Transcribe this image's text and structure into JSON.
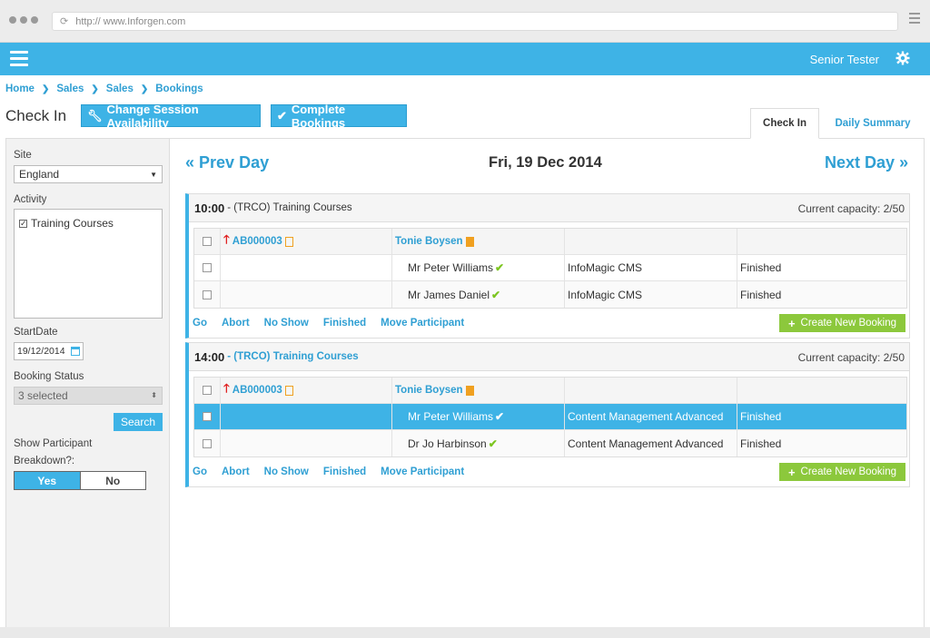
{
  "browser": {
    "url": "http:// www.Inforgen.com"
  },
  "header": {
    "user": "Senior Tester"
  },
  "breadcrumb": [
    "Home",
    "Sales",
    "Sales",
    "Bookings"
  ],
  "page": {
    "title": "Check In",
    "buttons": {
      "change_session": "Change Session Availability",
      "complete_bookings": "Complete Bookings"
    },
    "tabs": [
      {
        "label": "Check In",
        "active": true
      },
      {
        "label": "Daily Summary",
        "active": false
      }
    ]
  },
  "sidebar": {
    "site_label": "Site",
    "site_value": "England",
    "activity_label": "Activity",
    "activity_items": [
      {
        "label": "Training Courses",
        "checked": true
      }
    ],
    "startdate_label": "StartDate",
    "startdate_value": "19/12/2014",
    "booking_status_label": "Booking Status",
    "booking_status_value": "3 selected",
    "search_label": "Search",
    "breakdown_label_1": "Show Participant",
    "breakdown_label_2": "Breakdown?:",
    "yes": "Yes",
    "no": "No"
  },
  "daynav": {
    "prev": "Prev Day",
    "date": "Fri, 19 Dec 2014",
    "next": "Next Day"
  },
  "sessions": [
    {
      "time": "10:00",
      "desc": " - (TRCO) Training Courses",
      "capacity": "Current capacity: 2/50",
      "booking_ref": "AB000003",
      "booker": "Tonie Boysen",
      "participants": [
        {
          "name": "Mr Peter Williams",
          "course": "InfoMagic CMS",
          "status": "Finished"
        },
        {
          "name": "Mr James Daniel",
          "course": "InfoMagic CMS",
          "status": "Finished"
        }
      ]
    },
    {
      "time": "14:00",
      "desc": " - (TRCO) Training Courses",
      "capacity": "Current capacity: 2/50",
      "booking_ref": "AB000003",
      "booker": "Tonie Boysen",
      "participants": [
        {
          "name": "Mr Peter Williams",
          "course": "Content Management Advanced",
          "status": "Finished"
        },
        {
          "name": "Dr Jo Harbinson",
          "course": "Content Management Advanced",
          "status": "Finished"
        }
      ]
    }
  ],
  "actions": {
    "go": "Go",
    "abort": "Abort",
    "no_show": "No Show",
    "finished": "Finished",
    "move": "Move Participant",
    "create": "Create New Booking"
  },
  "colors": {
    "accent": "#3eb3e6",
    "success": "#8cc83c",
    "alert": "#e02020",
    "doc": "#f0a020"
  }
}
